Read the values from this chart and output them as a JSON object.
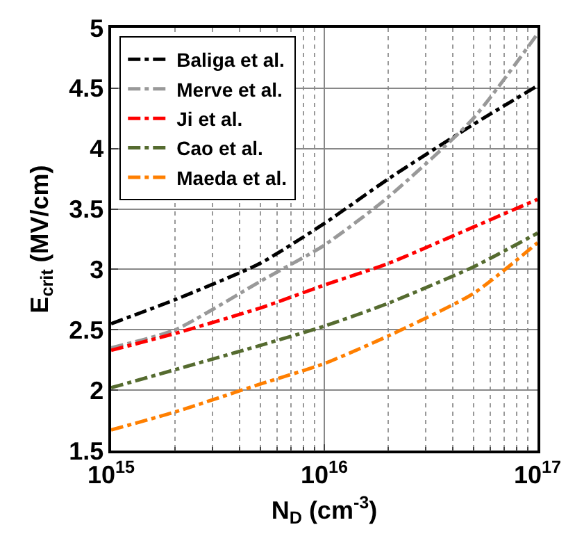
{
  "chart_data": {
    "type": "line",
    "xlabel": "N$_{D}$ (cm$^{-3}$)",
    "ylabel": "E$_{crit}$ (MV/cm)",
    "x": [
      1000000000000000.0,
      2000000000000000.0,
      5000000000000000.0,
      1e+16,
      2e+16,
      5e+16,
      1e+17
    ],
    "series": [
      {
        "name": "Baliga et al.",
        "color": "#000000",
        "values": [
          2.55,
          2.75,
          3.05,
          3.38,
          3.75,
          4.2,
          4.52
        ]
      },
      {
        "name": "Merve et al.",
        "color": "#999999",
        "values": [
          2.35,
          2.5,
          2.9,
          3.2,
          3.6,
          4.25,
          4.95
        ]
      },
      {
        "name": "Ji et al.",
        "color": "#ff0000",
        "values": [
          2.33,
          2.47,
          2.68,
          2.87,
          3.05,
          3.35,
          3.58
        ]
      },
      {
        "name": "Cao et al.",
        "color": "#556b2f",
        "values": [
          2.02,
          2.17,
          2.37,
          2.53,
          2.72,
          3.02,
          3.3
        ]
      },
      {
        "name": "Maeda et al.",
        "color": "#ff7f00",
        "values": [
          1.67,
          1.82,
          2.05,
          2.22,
          2.45,
          2.8,
          3.22
        ]
      }
    ],
    "log": "x",
    "xlim": [
      1000000000000000.0,
      1e+17
    ],
    "xticks": [
      {
        "value": 1000000000000000.0,
        "label": "10$^{15}$"
      },
      {
        "value": 1e+16,
        "label": "10$^{16}$"
      },
      {
        "value": 1e+17,
        "label": "10$^{17}$"
      }
    ],
    "ylim": [
      1.5,
      5
    ],
    "yticks": [
      1.5,
      2,
      2.5,
      3,
      3.5,
      4,
      4.5,
      5
    ],
    "grid": true,
    "legend": "top left",
    "marker": "none",
    "line_style": "dashed"
  }
}
